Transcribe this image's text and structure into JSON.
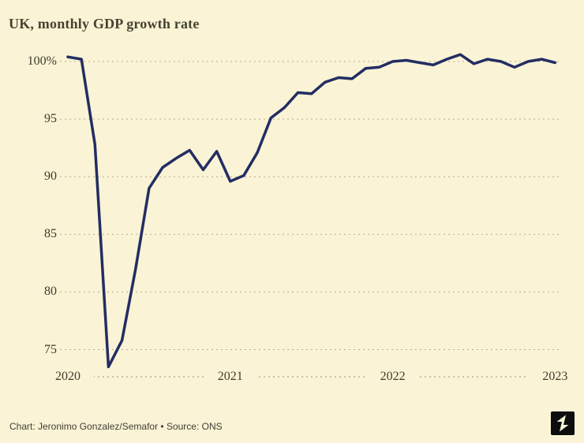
{
  "page": {
    "background": "#faf3d5"
  },
  "header": {
    "title": "UK, monthly GDP growth rate"
  },
  "footer": {
    "credit": "Chart: Jeronimo Gonzalez/Semafor • Source: ONS",
    "logo": "semafor-logo"
  },
  "chart_data": {
    "type": "line",
    "title": "UK, monthly GDP growth rate",
    "x_start": "2020-01",
    "x_end": "2023-01",
    "frequency": "monthly",
    "months": [
      "2020-01",
      "2020-02",
      "2020-03",
      "2020-04",
      "2020-05",
      "2020-06",
      "2020-07",
      "2020-08",
      "2020-09",
      "2020-10",
      "2020-11",
      "2020-12",
      "2021-01",
      "2021-02",
      "2021-03",
      "2021-04",
      "2021-05",
      "2021-06",
      "2021-07",
      "2021-08",
      "2021-09",
      "2021-10",
      "2021-11",
      "2021-12",
      "2022-01",
      "2022-02",
      "2022-03",
      "2022-04",
      "2022-05",
      "2022-06",
      "2022-07",
      "2022-08",
      "2022-09",
      "2022-10",
      "2022-11",
      "2022-12",
      "2023-01"
    ],
    "values": [
      100.4,
      100.2,
      92.8,
      73.5,
      75.8,
      82.0,
      89.0,
      90.8,
      91.6,
      92.3,
      90.6,
      92.2,
      89.6,
      90.1,
      92.1,
      95.1,
      96.0,
      97.3,
      97.2,
      98.2,
      98.6,
      98.5,
      99.4,
      99.5,
      100.0,
      100.1,
      99.9,
      99.7,
      100.2,
      100.6,
      99.8,
      100.2,
      100.0,
      99.5,
      100.0,
      100.2,
      99.9
    ],
    "yticks": {
      "values": [
        100,
        95,
        90,
        85,
        80,
        75
      ],
      "labels": [
        "100%",
        "95",
        "90",
        "85",
        "80",
        "75"
      ]
    },
    "xticks": {
      "month_index": [
        0,
        12,
        24,
        36
      ],
      "labels": [
        "2020",
        "2021",
        "2022",
        "2023"
      ]
    },
    "ylim": [
      73,
      101
    ],
    "grid": "dashed horizontal",
    "legend": "none",
    "line_color": "#232d63",
    "background": "#faf3d5"
  }
}
